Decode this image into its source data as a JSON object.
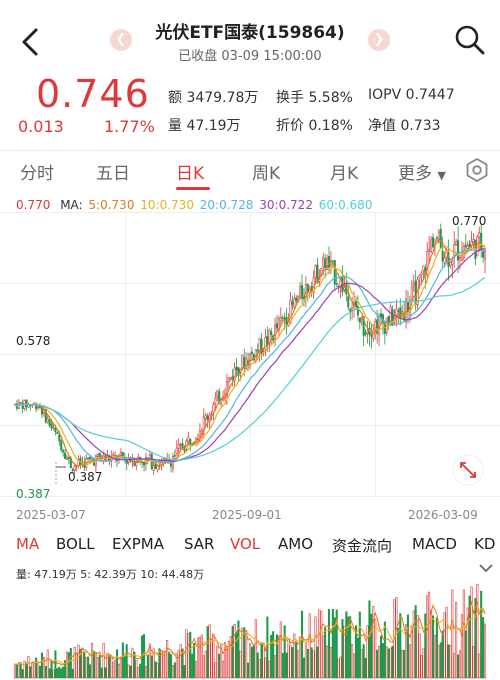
{
  "header": {
    "title": "光伏ETF国泰(159864)",
    "subtitle": "已收盘 03-09 15:00:00",
    "prev_icon": "chevron-left-icon",
    "next_icon": "chevron-right-icon"
  },
  "quote": {
    "price": "0.746",
    "change": "0.013",
    "change_pct": "1.77%",
    "stats": [
      {
        "label": "额",
        "value": "3479.78万"
      },
      {
        "label": "换手",
        "value": "5.58%"
      },
      {
        "label": "IOPV",
        "value": "0.7447"
      },
      {
        "label": "量",
        "value": "47.19万"
      },
      {
        "label": "折价",
        "value": "0.18%"
      },
      {
        "label": "净值",
        "value": "0.733"
      }
    ]
  },
  "tabs": [
    "分时",
    "五日",
    "日K",
    "周K",
    "月K",
    "更多"
  ],
  "active_tab": "日K",
  "ma_line": {
    "current": "0.770",
    "label": "MA:",
    "items": [
      {
        "text": "5:0.730",
        "color": "#e07b22"
      },
      {
        "text": "10:0.730",
        "color": "#e8b020"
      },
      {
        "text": "20:0.728",
        "color": "#4fb6e8"
      },
      {
        "text": "30:0.722",
        "color": "#9b3fb8"
      },
      {
        "text": "60:0.680",
        "color": "#50d0d8"
      }
    ]
  },
  "chart": {
    "ymax_label": "0.770",
    "ymid_label": "0.578",
    "ymin_label": "0.387",
    "low_marker_label": "0.387",
    "x_labels": [
      "2025-03-07",
      "2025-09-01",
      "2026-03-09"
    ],
    "fullscreen_icon": "expand-icon"
  },
  "indicators": [
    "MA",
    "BOLL",
    "EXPMA",
    "SAR",
    "VOL",
    "AMO",
    "资金流向",
    "MACD",
    "KD"
  ],
  "active_indicators": [
    "MA",
    "VOL"
  ],
  "volume": {
    "info": "量: 47.19万  5: 42.39万  10: 44.48万"
  },
  "colors": {
    "up": "#e0383a",
    "down": "#1a9a4a",
    "ma5": "#e07b22",
    "ma10": "#e8b020",
    "ma20": "#4fb6e8",
    "ma30": "#9b3fb8",
    "ma60": "#50d0d8"
  }
}
